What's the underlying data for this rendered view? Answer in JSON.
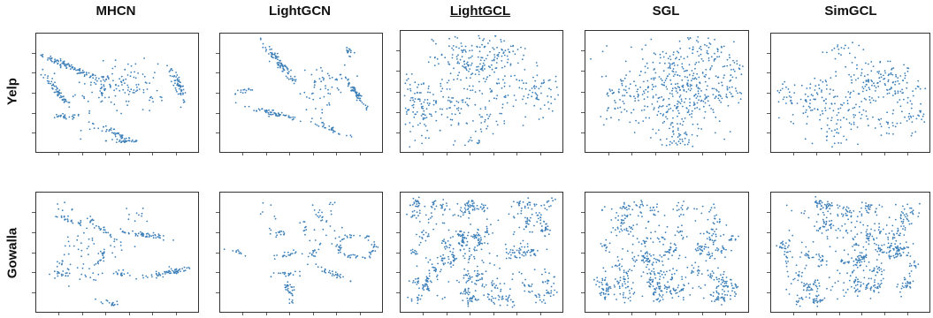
{
  "columns": [
    "MHCN",
    "LightGCN",
    "LightGCL",
    "SGL",
    "SimGCL"
  ],
  "highlighted_column": "LightGCL",
  "rows": [
    "Yelp",
    "Gowalla"
  ],
  "colors": {
    "point": "#3c7fb8",
    "frame": "#333333",
    "text": "#111111"
  },
  "chart_data": [
    {
      "type": "scatter",
      "dataset": "Yelp",
      "method": "MHCN",
      "x_range": [
        0,
        1
      ],
      "y_range": [
        0,
        1
      ],
      "clusters": [
        {
          "x": 0.2,
          "y": 0.72,
          "n": 90,
          "shape": "elongated",
          "angle": -30
        },
        {
          "x": 0.13,
          "y": 0.52,
          "n": 60,
          "shape": "elongated",
          "angle": -60
        },
        {
          "x": 0.42,
          "y": 0.55,
          "n": 80,
          "shape": "blob"
        },
        {
          "x": 0.6,
          "y": 0.6,
          "n": 50,
          "shape": "blob"
        },
        {
          "x": 0.87,
          "y": 0.57,
          "n": 60,
          "shape": "elongated",
          "angle": -75
        },
        {
          "x": 0.55,
          "y": 0.1,
          "n": 30,
          "shape": "elongated",
          "angle": 0
        },
        {
          "x": 0.18,
          "y": 0.3,
          "n": 25,
          "shape": "elongated",
          "angle": 0
        },
        {
          "x": 0.49,
          "y": 0.16,
          "n": 35,
          "shape": "elongated",
          "angle": -35
        },
        {
          "x": 0.73,
          "y": 0.4,
          "n": 10,
          "shape": "blob"
        },
        {
          "x": 0.37,
          "y": 0.23,
          "n": 8,
          "shape": "blob"
        }
      ]
    },
    {
      "type": "scatter",
      "dataset": "Yelp",
      "method": "LightGCN",
      "x_range": [
        0,
        1
      ],
      "y_range": [
        0,
        1
      ],
      "clusters": [
        {
          "x": 0.38,
          "y": 0.73,
          "n": 90,
          "shape": "elongated",
          "angle": -60
        },
        {
          "x": 0.63,
          "y": 0.58,
          "n": 40,
          "shape": "blob"
        },
        {
          "x": 0.83,
          "y": 0.5,
          "n": 60,
          "shape": "elongated",
          "angle": -60
        },
        {
          "x": 0.33,
          "y": 0.33,
          "n": 60,
          "shape": "elongated",
          "angle": -20
        },
        {
          "x": 0.69,
          "y": 0.2,
          "n": 30,
          "shape": "elongated",
          "angle": -30
        },
        {
          "x": 0.14,
          "y": 0.51,
          "n": 15,
          "shape": "elongated",
          "angle": 15
        },
        {
          "x": 0.79,
          "y": 0.85,
          "n": 15,
          "shape": "elongated",
          "angle": -70
        },
        {
          "x": 0.57,
          "y": 0.38,
          "n": 10,
          "shape": "blob"
        }
      ]
    },
    {
      "type": "scatter",
      "dataset": "Yelp",
      "method": "LightGCL",
      "x_range": [
        0,
        1
      ],
      "y_range": [
        0,
        1
      ],
      "clusters": [
        {
          "x": 0.46,
          "y": 0.72,
          "n": 200,
          "shape": "blob"
        },
        {
          "x": 0.12,
          "y": 0.37,
          "n": 150,
          "shape": "blob"
        },
        {
          "x": 0.86,
          "y": 0.49,
          "n": 70,
          "shape": "blob"
        },
        {
          "x": 0.68,
          "y": 0.78,
          "n": 25,
          "shape": "blob"
        },
        {
          "x": 0.36,
          "y": 0.38,
          "n": 25,
          "shape": "blob"
        },
        {
          "x": 0.55,
          "y": 0.3,
          "n": 20,
          "shape": "blob"
        },
        {
          "x": 0.47,
          "y": 0.1,
          "n": 20,
          "shape": "blob"
        },
        {
          "x": 0.66,
          "y": 0.42,
          "n": 10,
          "shape": "blob"
        },
        {
          "x": 0.5,
          "y": 0.95,
          "n": 6,
          "shape": "blob"
        }
      ]
    },
    {
      "type": "scatter",
      "dataset": "Yelp",
      "method": "SGL",
      "x_range": [
        0,
        1
      ],
      "y_range": [
        0,
        1
      ],
      "clusters": [
        {
          "x": 0.56,
          "y": 0.52,
          "n": 420,
          "shape": "blob"
        },
        {
          "x": 0.57,
          "y": 0.12,
          "n": 40,
          "shape": "blob"
        },
        {
          "x": 0.24,
          "y": 0.5,
          "n": 25,
          "shape": "blob"
        },
        {
          "x": 0.78,
          "y": 0.82,
          "n": 25,
          "shape": "blob"
        },
        {
          "x": 0.91,
          "y": 0.7,
          "n": 15,
          "shape": "blob"
        },
        {
          "x": 0.21,
          "y": 0.35,
          "n": 10,
          "shape": "blob"
        },
        {
          "x": 0.86,
          "y": 0.5,
          "n": 15,
          "shape": "blob"
        },
        {
          "x": 0.68,
          "y": 0.95,
          "n": 8,
          "shape": "blob"
        }
      ]
    },
    {
      "type": "scatter",
      "dataset": "Yelp",
      "method": "SimGCL",
      "x_range": [
        0,
        1
      ],
      "y_range": [
        0,
        1
      ],
      "clusters": [
        {
          "x": 0.63,
          "y": 0.6,
          "n": 100,
          "shape": "blob"
        },
        {
          "x": 0.32,
          "y": 0.43,
          "n": 100,
          "shape": "blob"
        },
        {
          "x": 0.8,
          "y": 0.58,
          "n": 40,
          "shape": "blob"
        },
        {
          "x": 0.87,
          "y": 0.33,
          "n": 40,
          "shape": "blob"
        },
        {
          "x": 0.52,
          "y": 0.3,
          "n": 25,
          "shape": "blob"
        },
        {
          "x": 0.72,
          "y": 0.22,
          "n": 20,
          "shape": "blob"
        },
        {
          "x": 0.42,
          "y": 0.85,
          "n": 20,
          "shape": "blob"
        },
        {
          "x": 0.37,
          "y": 0.13,
          "n": 20,
          "shape": "blob"
        },
        {
          "x": 0.1,
          "y": 0.48,
          "n": 20,
          "shape": "blob"
        }
      ]
    },
    {
      "type": "scatter",
      "dataset": "Gowalla",
      "method": "MHCN",
      "x_range": [
        0,
        1
      ],
      "y_range": [
        0,
        1
      ],
      "clusters": [
        {
          "x": 0.8,
          "y": 0.33,
          "n": 60,
          "shape": "elongated",
          "angle": 15
        },
        {
          "x": 0.67,
          "y": 0.64,
          "n": 50,
          "shape": "elongated",
          "angle": -10
        },
        {
          "x": 0.4,
          "y": 0.7,
          "n": 30,
          "shape": "elongated",
          "angle": -45
        },
        {
          "x": 0.2,
          "y": 0.77,
          "n": 25,
          "shape": "elongated",
          "angle": -20
        },
        {
          "x": 0.3,
          "y": 0.58,
          "n": 20,
          "shape": "blob"
        },
        {
          "x": 0.4,
          "y": 0.45,
          "n": 20,
          "shape": "elongated",
          "angle": 70
        },
        {
          "x": 0.2,
          "y": 0.4,
          "n": 20,
          "shape": "blob"
        },
        {
          "x": 0.17,
          "y": 0.32,
          "n": 15,
          "shape": "elongated",
          "angle": 0
        },
        {
          "x": 0.55,
          "y": 0.32,
          "n": 15,
          "shape": "elongated",
          "angle": -20
        },
        {
          "x": 0.45,
          "y": 0.08,
          "n": 15,
          "shape": "elongated",
          "angle": -10
        },
        {
          "x": 0.35,
          "y": 0.3,
          "n": 10,
          "shape": "blob"
        },
        {
          "x": 0.62,
          "y": 0.8,
          "n": 10,
          "shape": "blob"
        },
        {
          "x": 0.16,
          "y": 0.88,
          "n": 6,
          "shape": "blob"
        },
        {
          "x": 0.52,
          "y": 0.55,
          "n": 8,
          "shape": "blob"
        }
      ]
    },
    {
      "type": "scatter",
      "dataset": "Gowalla",
      "method": "LightGCN",
      "x_range": [
        0,
        1
      ],
      "y_range": [
        0,
        1
      ],
      "clusters": [
        {
          "x": 0.84,
          "y": 0.55,
          "n": 70,
          "shape": "ring"
        },
        {
          "x": 0.43,
          "y": 0.18,
          "n": 30,
          "shape": "elongated",
          "angle": -80
        },
        {
          "x": 0.7,
          "y": 0.32,
          "n": 30,
          "shape": "elongated",
          "angle": -30
        },
        {
          "x": 0.4,
          "y": 0.32,
          "n": 20,
          "shape": "elongated",
          "angle": 0
        },
        {
          "x": 0.4,
          "y": 0.48,
          "n": 20,
          "shape": "elongated",
          "angle": 10
        },
        {
          "x": 0.35,
          "y": 0.66,
          "n": 15,
          "shape": "elongated",
          "angle": -10
        },
        {
          "x": 0.58,
          "y": 0.5,
          "n": 15,
          "shape": "elongated",
          "angle": 60
        },
        {
          "x": 0.62,
          "y": 0.8,
          "n": 15,
          "shape": "elongated",
          "angle": -60
        },
        {
          "x": 0.12,
          "y": 0.5,
          "n": 10,
          "shape": "elongated",
          "angle": -20
        },
        {
          "x": 0.7,
          "y": 0.66,
          "n": 10,
          "shape": "blob"
        },
        {
          "x": 0.53,
          "y": 0.7,
          "n": 10,
          "shape": "elongated",
          "angle": -70
        },
        {
          "x": 0.3,
          "y": 0.86,
          "n": 6,
          "shape": "blob"
        },
        {
          "x": 0.67,
          "y": 0.9,
          "n": 6,
          "shape": "blob"
        }
      ]
    },
    {
      "type": "scatter",
      "dataset": "Gowalla",
      "method": "LightGCL",
      "x_range": [
        0,
        1
      ],
      "y_range": [
        0,
        1
      ],
      "clusters": [
        {
          "x": 0.5,
          "y": 0.5,
          "n": 600,
          "shape": "fragmented"
        }
      ]
    },
    {
      "type": "scatter",
      "dataset": "Gowalla",
      "method": "SGL",
      "x_range": [
        0,
        1
      ],
      "y_range": [
        0,
        1
      ],
      "clusters": [
        {
          "x": 0.5,
          "y": 0.5,
          "n": 550,
          "shape": "fragmented"
        }
      ]
    },
    {
      "type": "scatter",
      "dataset": "Gowalla",
      "method": "SimGCL",
      "x_range": [
        0,
        1
      ],
      "y_range": [
        0,
        1
      ],
      "clusters": [
        {
          "x": 0.5,
          "y": 0.5,
          "n": 550,
          "shape": "fragmented"
        }
      ]
    }
  ]
}
